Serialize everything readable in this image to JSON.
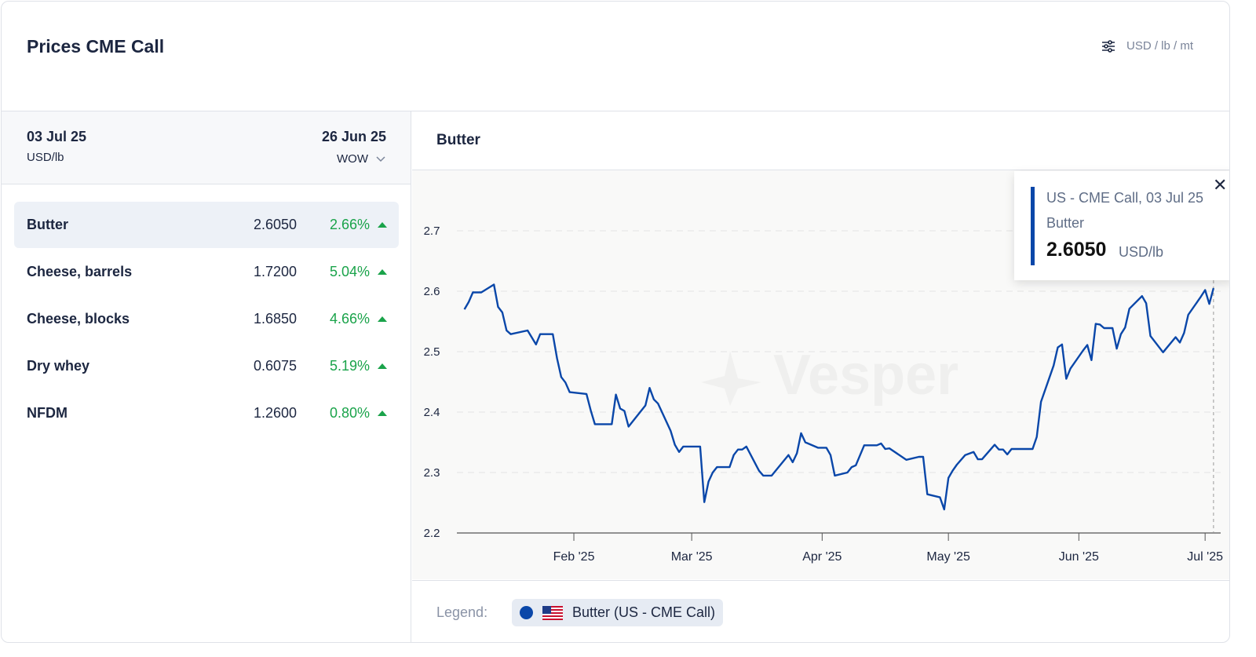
{
  "header": {
    "title": "Prices CME Call",
    "units": "USD / lb / mt",
    "settings_icon": "sliders-icon"
  },
  "left": {
    "date_current": "03 Jul 25",
    "unit": "USD/lb",
    "date_compare": "26 Jun 25",
    "compare_mode": "WOW",
    "rows": [
      {
        "name": "Butter",
        "value": "2.6050",
        "change": "2.66%"
      },
      {
        "name": "Cheese, barrels",
        "value": "1.7200",
        "change": "5.04%"
      },
      {
        "name": "Cheese, blocks",
        "value": "1.6850",
        "change": "4.66%"
      },
      {
        "name": "Dry whey",
        "value": "0.6075",
        "change": "5.19%"
      },
      {
        "name": "NFDM",
        "value": "1.2600",
        "change": "0.80%"
      }
    ]
  },
  "right": {
    "title": "Butter",
    "watermark": "Vesper",
    "tooltip": {
      "series": "US - CME Call, 03 Jul 25",
      "product": "Butter",
      "value": "2.6050",
      "unit": "USD/lb"
    },
    "legend": {
      "label": "Legend:",
      "item": "Butter (US - CME Call)"
    }
  },
  "colors": {
    "line": "#0a47a9",
    "up": "#1aa34a"
  },
  "chart_data": {
    "type": "line",
    "title": "Butter",
    "x_unit": "day of year 2025 (0 = 01 Jan)",
    "xlim": [
      3.2,
      184.7
    ],
    "ylim": [
      2.2,
      2.8
    ],
    "yticks": [
      2.2,
      2.3,
      2.4,
      2.5,
      2.6,
      2.7
    ],
    "xticks": [
      {
        "day": 31,
        "label": "Feb '25"
      },
      {
        "day": 59,
        "label": "Mar '25"
      },
      {
        "day": 90,
        "label": "Apr '25"
      },
      {
        "day": 120,
        "label": "May '25"
      },
      {
        "day": 151,
        "label": "Jun '25"
      },
      {
        "day": 181,
        "label": "Jul '25"
      }
    ],
    "series": [
      {
        "name": "Butter (US - CME Call)",
        "points": [
          [
            5,
            2.57
          ],
          [
            6,
            2.582
          ],
          [
            7,
            2.598
          ],
          [
            9,
            2.598
          ],
          [
            12,
            2.611
          ],
          [
            13,
            2.574
          ],
          [
            14,
            2.565
          ],
          [
            15,
            2.535
          ],
          [
            16,
            2.529
          ],
          [
            20,
            2.535
          ],
          [
            22,
            2.512
          ],
          [
            23,
            2.529
          ],
          [
            26,
            2.529
          ],
          [
            27,
            2.489
          ],
          [
            28,
            2.458
          ],
          [
            29,
            2.449
          ],
          [
            30,
            2.433
          ],
          [
            34,
            2.43
          ],
          [
            35,
            2.403
          ],
          [
            36,
            2.38
          ],
          [
            40,
            2.38
          ],
          [
            41,
            2.429
          ],
          [
            42,
            2.406
          ],
          [
            43,
            2.402
          ],
          [
            44,
            2.376
          ],
          [
            48,
            2.411
          ],
          [
            49,
            2.44
          ],
          [
            50,
            2.421
          ],
          [
            51,
            2.414
          ],
          [
            54,
            2.369
          ],
          [
            55,
            2.346
          ],
          [
            56,
            2.334
          ],
          [
            57,
            2.343
          ],
          [
            61,
            2.343
          ],
          [
            62,
            2.251
          ],
          [
            63,
            2.285
          ],
          [
            64,
            2.3
          ],
          [
            65,
            2.309
          ],
          [
            68,
            2.309
          ],
          [
            69,
            2.329
          ],
          [
            70,
            2.338
          ],
          [
            71,
            2.338
          ],
          [
            72,
            2.343
          ],
          [
            75,
            2.303
          ],
          [
            76,
            2.295
          ],
          [
            78,
            2.295
          ],
          [
            82,
            2.329
          ],
          [
            83,
            2.317
          ],
          [
            84,
            2.332
          ],
          [
            85,
            2.365
          ],
          [
            86,
            2.35
          ],
          [
            89,
            2.341
          ],
          [
            91,
            2.341
          ],
          [
            92,
            2.329
          ],
          [
            93,
            2.295
          ],
          [
            96,
            2.3
          ],
          [
            97,
            2.309
          ],
          [
            98,
            2.312
          ],
          [
            100,
            2.345
          ],
          [
            103,
            2.345
          ],
          [
            104,
            2.348
          ],
          [
            105,
            2.339
          ],
          [
            106,
            2.34
          ],
          [
            110,
            2.321
          ],
          [
            113,
            2.326
          ],
          [
            114,
            2.326
          ],
          [
            115,
            2.264
          ],
          [
            118,
            2.259
          ],
          [
            119,
            2.239
          ],
          [
            120,
            2.291
          ],
          [
            121,
            2.303
          ],
          [
            122,
            2.313
          ],
          [
            124,
            2.329
          ],
          [
            126,
            2.334
          ],
          [
            127,
            2.322
          ],
          [
            128,
            2.322
          ],
          [
            131,
            2.346
          ],
          [
            132,
            2.338
          ],
          [
            133,
            2.338
          ],
          [
            134,
            2.33
          ],
          [
            135,
            2.339
          ],
          [
            140,
            2.339
          ],
          [
            141,
            2.359
          ],
          [
            142,
            2.417
          ],
          [
            145,
            2.477
          ],
          [
            146,
            2.507
          ],
          [
            147,
            2.512
          ],
          [
            148,
            2.455
          ],
          [
            149,
            2.472
          ],
          [
            152,
            2.502
          ],
          [
            153,
            2.511
          ],
          [
            154,
            2.486
          ],
          [
            155,
            2.546
          ],
          [
            156,
            2.545
          ],
          [
            157,
            2.539
          ],
          [
            159,
            2.539
          ],
          [
            160,
            2.505
          ],
          [
            161,
            2.529
          ],
          [
            162,
            2.54
          ],
          [
            163,
            2.571
          ],
          [
            166,
            2.592
          ],
          [
            167,
            2.58
          ],
          [
            168,
            2.526
          ],
          [
            171,
            2.499
          ],
          [
            174,
            2.524
          ],
          [
            175,
            2.515
          ],
          [
            176,
            2.531
          ],
          [
            177,
            2.561
          ],
          [
            180,
            2.591
          ],
          [
            181,
            2.602
          ],
          [
            182,
            2.579
          ],
          [
            183,
            2.605
          ]
        ]
      }
    ],
    "grid": true,
    "legend": "bottom-left"
  }
}
